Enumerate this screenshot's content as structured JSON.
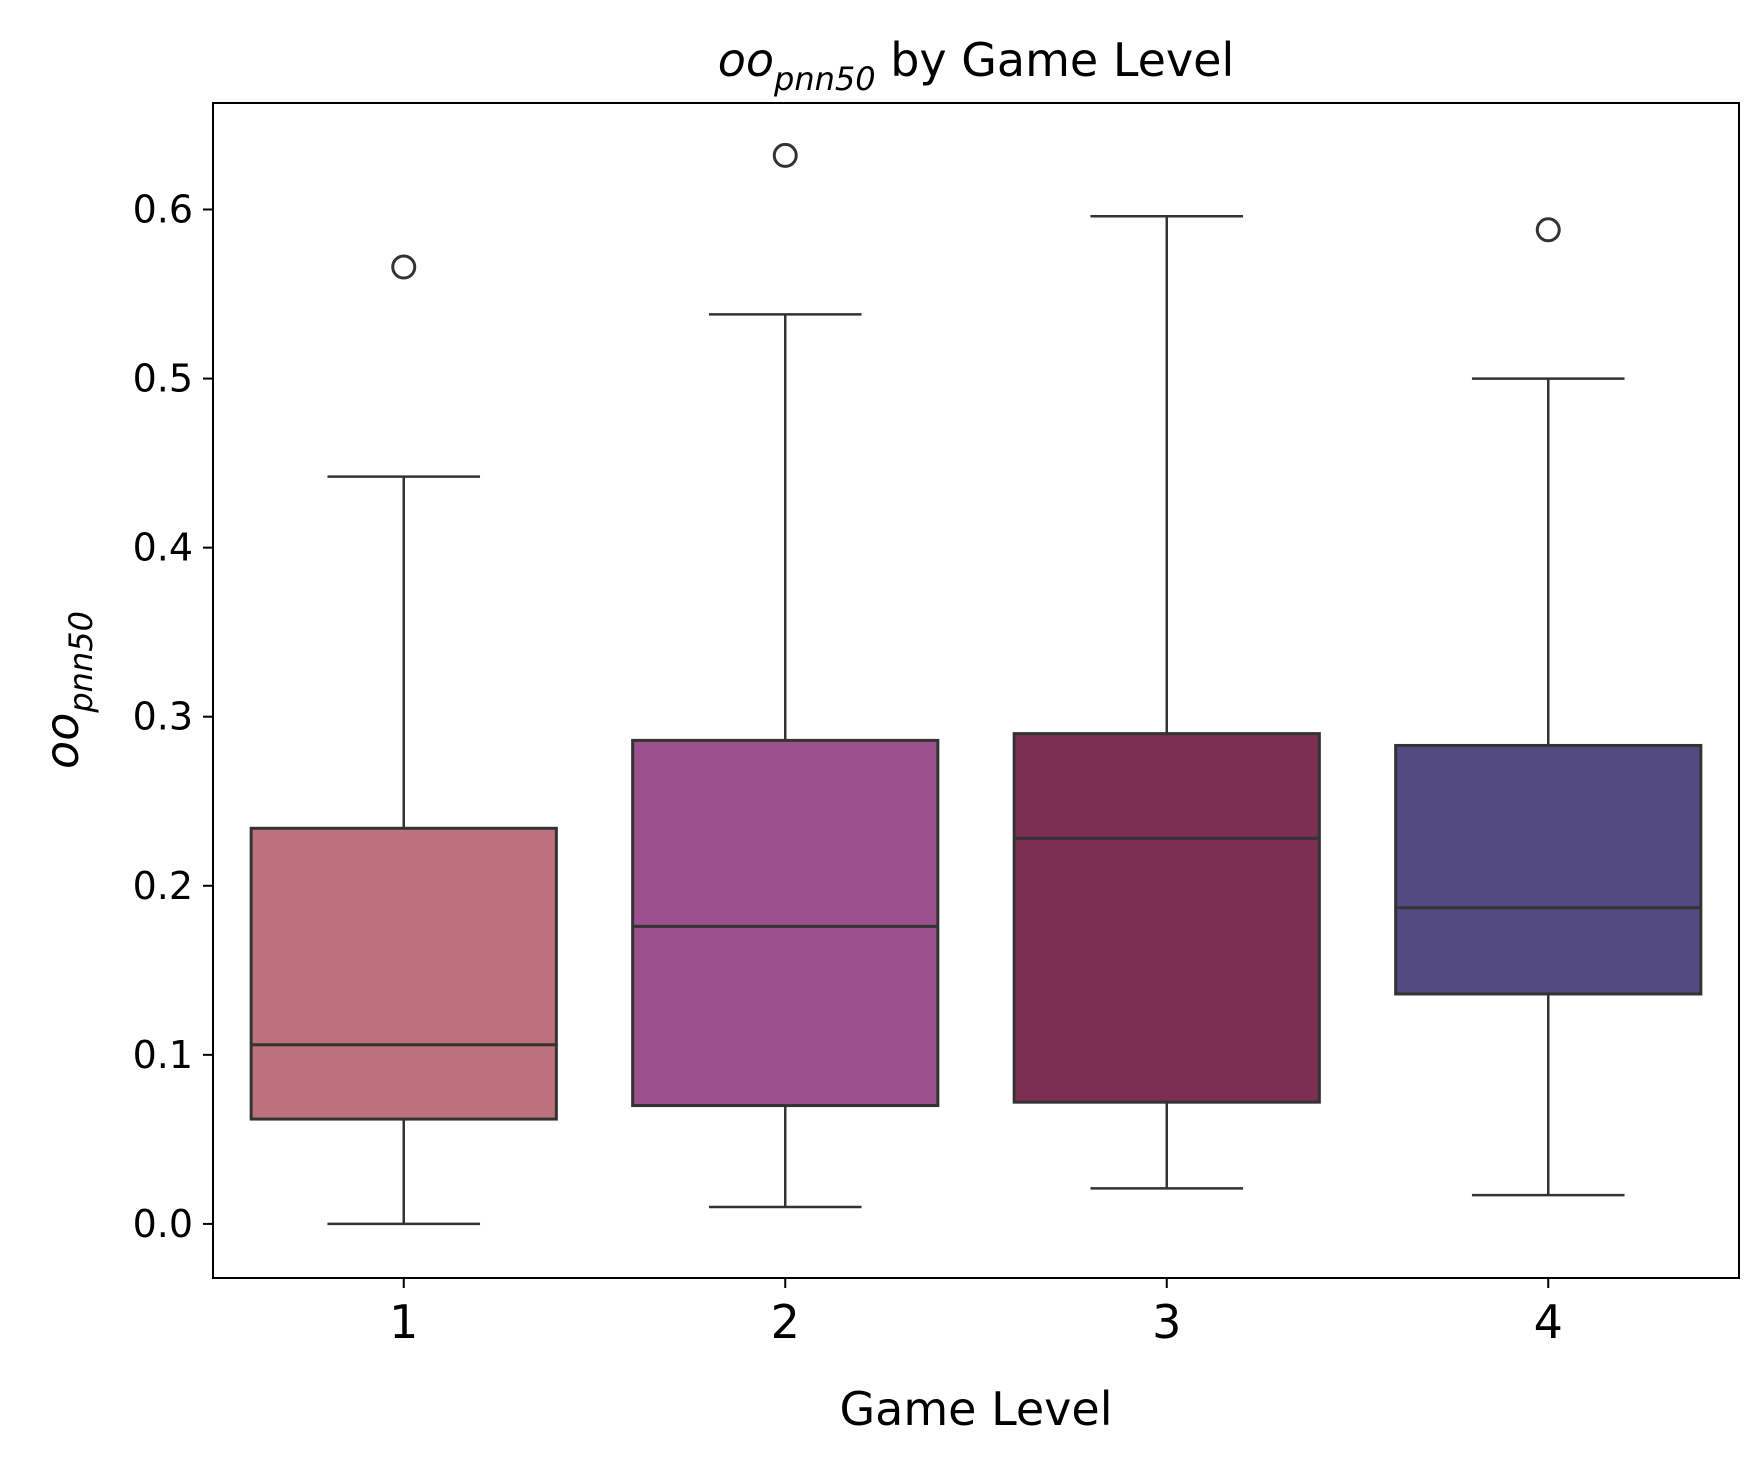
{
  "chart_data": {
    "type": "box",
    "title": {
      "main": "oo",
      "sub": "pnn50",
      "rest": " by Game Level"
    },
    "xlabel": "Game Level",
    "ylabel": {
      "main": "oo",
      "sub": "pnn50"
    },
    "ylim": [
      -0.032,
      0.663
    ],
    "yticks": [
      0.0,
      0.1,
      0.2,
      0.3,
      0.4,
      0.5,
      0.6
    ],
    "ytick_labels": [
      "0.0",
      "0.1",
      "0.2",
      "0.3",
      "0.4",
      "0.5",
      "0.6"
    ],
    "categories": [
      "1",
      "2",
      "3",
      "4"
    ],
    "grid": false,
    "legend": "none",
    "boxes": [
      {
        "category": "1",
        "whislo": 0.0,
        "q1": 0.062,
        "median": 0.106,
        "q3": 0.234,
        "whishi": 0.442,
        "fliers": [
          0.566
        ],
        "color": "#be717d"
      },
      {
        "category": "2",
        "whislo": 0.01,
        "q1": 0.07,
        "median": 0.176,
        "q3": 0.286,
        "whishi": 0.538,
        "fliers": [
          0.632
        ],
        "color": "#9c518e"
      },
      {
        "category": "3",
        "whislo": 0.021,
        "q1": 0.072,
        "median": 0.228,
        "q3": 0.29,
        "whishi": 0.596,
        "fliers": [],
        "color": "#7c2e53"
      },
      {
        "category": "4",
        "whislo": 0.017,
        "q1": 0.136,
        "median": 0.187,
        "q3": 0.283,
        "whishi": 0.5,
        "fliers": [
          0.588
        ],
        "color": "#524a80"
      }
    ],
    "line_color": "#333333"
  }
}
